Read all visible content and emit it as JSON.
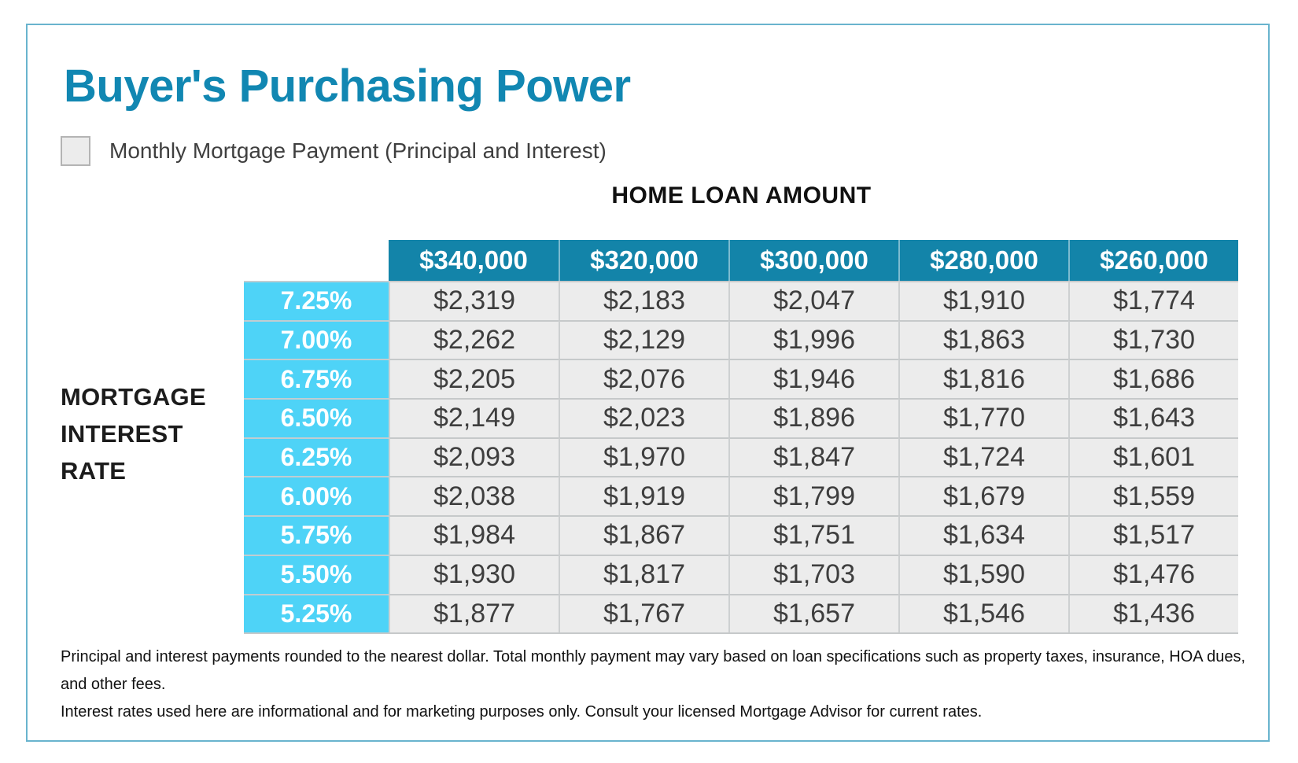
{
  "chart_data": {
    "type": "table",
    "title": "Buyer's Purchasing Power",
    "subtitle": "Monthly Mortgage Payment (Principal and Interest)",
    "column_group_label": "HOME LOAN AMOUNT",
    "row_group_label": "MORTGAGE INTEREST RATE",
    "columns": [
      "$340,000",
      "$320,000",
      "$300,000",
      "$280,000",
      "$260,000"
    ],
    "loan_amounts": [
      340000,
      320000,
      300000,
      280000,
      260000
    ],
    "rows": [
      {
        "rate_pct": 7.25,
        "rate_label": "7.25%",
        "payments": [
          "$2,319",
          "$2,183",
          "$2,047",
          "$1,910",
          "$1,774"
        ]
      },
      {
        "rate_pct": 7.0,
        "rate_label": "7.00%",
        "payments": [
          "$2,262",
          "$2,129",
          "$1,996",
          "$1,863",
          "$1,730"
        ]
      },
      {
        "rate_pct": 6.75,
        "rate_label": "6.75%",
        "payments": [
          "$2,205",
          "$2,076",
          "$1,946",
          "$1,816",
          "$1,686"
        ]
      },
      {
        "rate_pct": 6.5,
        "rate_label": "6.50%",
        "payments": [
          "$2,149",
          "$2,023",
          "$1,896",
          "$1,770",
          "$1,643"
        ]
      },
      {
        "rate_pct": 6.25,
        "rate_label": "6.25%",
        "payments": [
          "$2,093",
          "$1,970",
          "$1,847",
          "$1,724",
          "$1,601"
        ]
      },
      {
        "rate_pct": 6.0,
        "rate_label": "6.00%",
        "payments": [
          "$2,038",
          "$1,919",
          "$1,799",
          "$1,679",
          "$1,559"
        ]
      },
      {
        "rate_pct": 5.75,
        "rate_label": "5.75%",
        "payments": [
          "$1,984",
          "$1,867",
          "$1,751",
          "$1,634",
          "$1,517"
        ]
      },
      {
        "rate_pct": 5.5,
        "rate_label": "5.50%",
        "payments": [
          "$1,930",
          "$1,817",
          "$1,703",
          "$1,590",
          "$1,476"
        ]
      },
      {
        "rate_pct": 5.25,
        "rate_label": "5.25%",
        "payments": [
          "$1,877",
          "$1,767",
          "$1,657",
          "$1,546",
          "$1,436"
        ]
      }
    ]
  },
  "ui": {
    "row_group_label_lines": [
      "MORTGAGE",
      "INTEREST",
      "RATE"
    ]
  },
  "footnotes": [
    "Principal and interest payments rounded to the nearest dollar. Total monthly payment may vary based on loan specifications such as property taxes, insurance, HOA dues, and other fees.",
    "Interest rates used here are informational and for marketing purposes only. Consult your licensed Mortgage Advisor for current rates."
  ],
  "colors": {
    "title_teal": "#1187b2",
    "header_teal": "#1384a9",
    "rate_cyan": "#4ed3f7",
    "cell_gray": "#ececec",
    "text_dark": "#3e3e3e",
    "card_border": "#69b4ce"
  }
}
